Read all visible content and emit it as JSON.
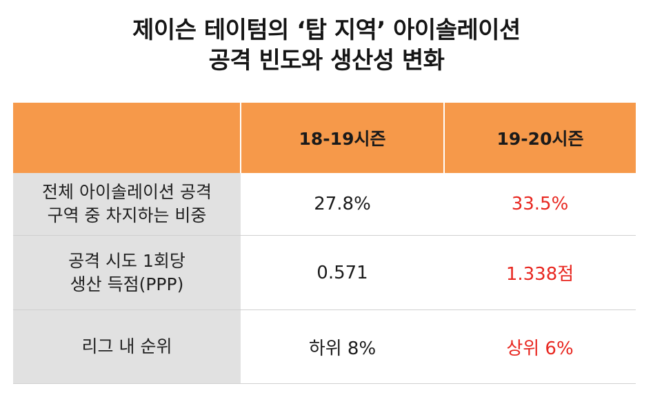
{
  "title": {
    "line1": "제이슨 테이텀의 ‘탑 지역’ 아이솔레이션",
    "line2": "공격 빈도와 생산성 변화"
  },
  "table": {
    "headers": [
      "",
      "18-19시즌",
      "19-20시즌"
    ],
    "rows": [
      {
        "label_line1": "전체 아이솔레이션 공격",
        "label_line2": "구역 중 차지하는 비중",
        "season_1819": "27.8%",
        "season_1920": "33.5%"
      },
      {
        "label_line1": "공격 시도 1회당",
        "label_line2": "생산 득점(PPP)",
        "season_1819": "0.571",
        "season_1920": "1.338점"
      },
      {
        "label_line1": "리그 내 순위",
        "label_line2": "",
        "season_1819": "하위 8%",
        "season_1920": "상위 6%"
      }
    ]
  },
  "colors": {
    "header_bg": "#f6994a",
    "label_bg": "#e1e1e1",
    "highlight_text": "#e8261f"
  }
}
